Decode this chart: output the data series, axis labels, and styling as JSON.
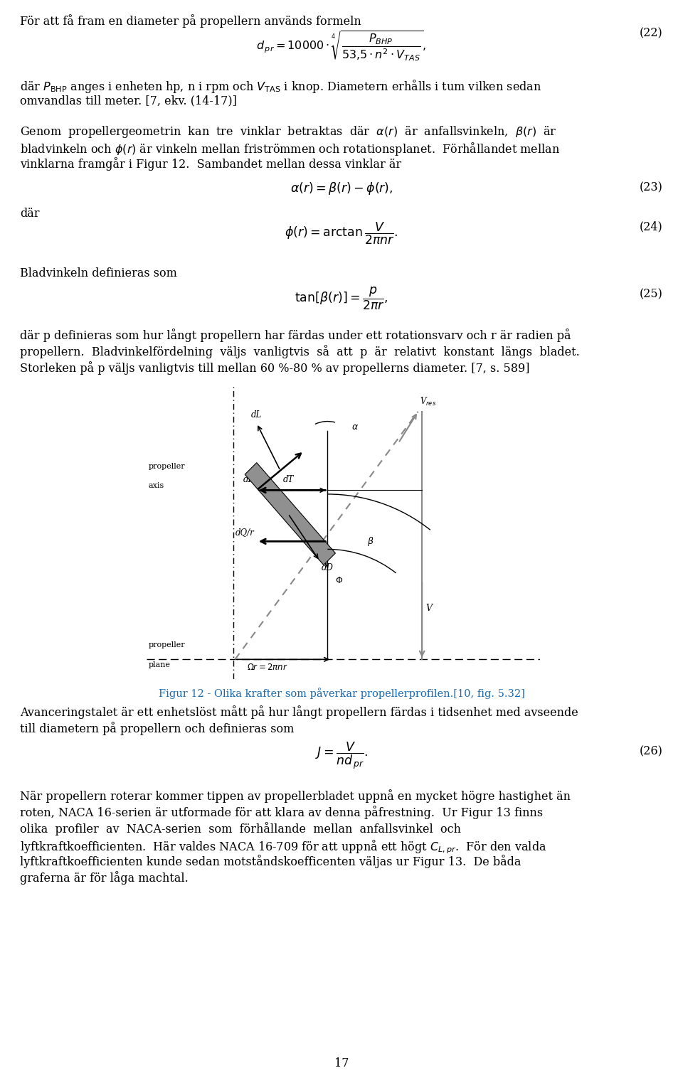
{
  "page_width": 9.6,
  "page_height": 15.09,
  "dpi": 100,
  "bg_color": "#ffffff",
  "text_color": "#000000",
  "fig_caption_color": "#1a6aab",
  "font_size_body": 11.5,
  "font_size_small": 10.5,
  "para1": "För att få fram en diameter på propellern används formeln",
  "para2a": "där $P_{\\mathrm{BHP}}$ anges i enheten hp, n i rpm och $V_{\\mathrm{TAS}}$ i knop. Diametern erhålls i tum vilken sedan",
  "para2b": "omvandlas till meter. [7, ekv. (14-17)]",
  "para3a": "Genom  propellergeometrin  kan  tre  vinklar  betraktas  där  $\\alpha(r)$  är  anfallsvinkeln,  $\\beta(r)$  är",
  "para3b": "bladvinkeln och $\\phi(r)$ är vinkeln mellan friströmmen och rotationsplanet.  Förhållandet mellan",
  "para3c": "vinklarna framgår i Figur 12.  Sambandet mellan dessa vinklar är",
  "eq23_num": "(23)",
  "eq24_num": "(24)",
  "para4": "Bladvinkeln definieras som",
  "eq25_num": "(25)",
  "para5a": "där p definieras som hur långt propellern har färdas under ett rotationsvarv och r är radien på",
  "para5b": "propellern.  Bladvinkelfördelning  väljs  vanligtvis  så  att  p  är  relativt  konstant  längs  bladet.",
  "para5c": "Storleken på p väljs vanligtvis till mellan 60 %-80 % av propellerns diameter. [7, s. 589]",
  "fig_caption": "Figur 12 - Olika krafter som påverkar propellerprofilen.[10, fig. 5.32]",
  "para6a": "Avanceringstalet är ett enhetslöst mått på hur långt propellern färdas i tidsenhet med avseende",
  "para6b": "till diametern på propellern och definieras som",
  "eq26_num": "(26)",
  "para7a": "När propellern roterar kommer tippen av propellerbladet uppnå en mycket högre hastighet än",
  "para7b": "roten, NACA 16-serien är utformade för att klara av denna påfrestning.  Ur Figur 13 finns",
  "para7c": "olika  profiler  av  NACA-serien  som  förhållande  mellan  anfallsvinkel  och",
  "para7d": "lyftkraftkoefficienten.  Här valdes NACA 16-709 för att uppnå ett högt $C_{L,pr}$.  För den valda",
  "para7e": "lyftkraftkoefficienten kunde sedan motståndskoefficenten väljas ur Figur 13.  De båda",
  "para7f": "graferna är för låga machtal.",
  "page_num": "17",
  "eq22_num": "(22)"
}
